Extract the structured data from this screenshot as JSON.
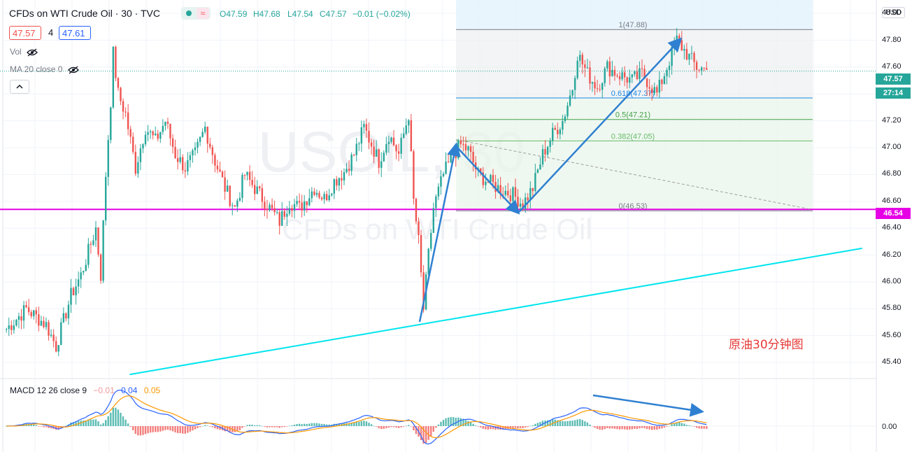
{
  "header": {
    "title": "CFDs on WTI Crude Oil · 30 · TVC",
    "open": "O47.59",
    "high": "H47.68",
    "low": "L47.54",
    "close": "C47.57",
    "change": "−0.01 (−0.02%)",
    "bid": "47.57",
    "spread": "4",
    "ask": "47.61",
    "currency": "USD"
  },
  "indicators": {
    "vol_label": "Vol",
    "ma_label": "MA 20 close 0",
    "macd_label": "MACD 12 26 close 9",
    "macd_hist": "−0.01",
    "macd_line": "0.04",
    "macd_signal": "0.05",
    "macd_axis_value": "0.00"
  },
  "watermark": {
    "symbol": "USOIL, 30",
    "name": "CFDs on WTI Crude Oil"
  },
  "annotation": {
    "caption": "原油30分钟图"
  },
  "price_axis": {
    "current_price": "47.57",
    "countdown": "27:14",
    "level_line_price": "46.54"
  },
  "colors": {
    "up": "#26a69a",
    "down": "#ef5350",
    "trendline": "#00e5ee",
    "level_line": "#e600e6",
    "arrows": "#2f80d1",
    "macd_line": "#2962ff",
    "signal_line": "#ff9800",
    "fib_box": "#e3f2fd"
  },
  "chart_data": {
    "type": "candlestick",
    "timeframe": "30",
    "ylim": [
      45.28,
      48.1
    ],
    "y_ticks": [
      "48.00",
      "47.80",
      "47.60",
      "47.40",
      "47.20",
      "47.00",
      "46.80",
      "46.60",
      "46.40",
      "46.20",
      "46.00",
      "45.80",
      "45.60",
      "45.40"
    ],
    "horizontal_level": 46.54,
    "trendline": [
      {
        "bar": 50,
        "price": 45.31
      },
      {
        "bar": 345,
        "price": 46.25
      }
    ],
    "fibonacci": {
      "from": 46.53,
      "to": 47.88,
      "levels": [
        {
          "label": "1(47.88)",
          "price": 47.88
        },
        {
          "label": "0.618(47.37)",
          "price": 47.37
        },
        {
          "label": "0.5(47.21)",
          "price": 47.21
        },
        {
          "label": "0.382(47.05)",
          "price": 47.05
        },
        {
          "label": "0(46.53)",
          "price": 46.53
        }
      ]
    },
    "arrows": [
      {
        "from": [
          168,
          45.72
        ],
        "to": [
          183,
          47.06
        ]
      },
      {
        "from": [
          185,
          47.01
        ],
        "to": [
          208,
          46.55
        ]
      },
      {
        "from": [
          208,
          46.55
        ],
        "to": [
          272,
          47.86
        ]
      },
      {
        "from": [
          235,
          47.2
        ],
        "to": [
          235,
          47.21
        ]
      }
    ],
    "close_path": [
      [
        0,
        45.65
      ],
      [
        8,
        45.8
      ],
      [
        16,
        45.68
      ],
      [
        20,
        45.52
      ],
      [
        26,
        45.9
      ],
      [
        30,
        46.05
      ],
      [
        36,
        46.4
      ],
      [
        38,
        46.05
      ],
      [
        40,
        46.8
      ],
      [
        42,
        47.35
      ],
      [
        43,
        47.7
      ],
      [
        45,
        47.4
      ],
      [
        48,
        47.25
      ],
      [
        52,
        46.85
      ],
      [
        56,
        47.15
      ],
      [
        60,
        47.05
      ],
      [
        64,
        47.2
      ],
      [
        68,
        46.95
      ],
      [
        72,
        46.85
      ],
      [
        76,
        46.95
      ],
      [
        80,
        47.15
      ],
      [
        84,
        46.9
      ],
      [
        88,
        46.7
      ],
      [
        92,
        46.55
      ],
      [
        96,
        46.8
      ],
      [
        98,
        46.75
      ],
      [
        102,
        46.65
      ],
      [
        106,
        46.55
      ],
      [
        110,
        46.45
      ],
      [
        114,
        46.6
      ],
      [
        118,
        46.55
      ],
      [
        124,
        46.7
      ],
      [
        128,
        46.62
      ],
      [
        132,
        46.75
      ],
      [
        136,
        46.82
      ],
      [
        140,
        46.95
      ],
      [
        144,
        47.15
      ],
      [
        150,
        46.9
      ],
      [
        154,
        47.1
      ],
      [
        158,
        46.95
      ],
      [
        162,
        47.25
      ],
      [
        164,
        46.6
      ],
      [
        166,
        46.3
      ],
      [
        168,
        45.8
      ],
      [
        170,
        46.2
      ],
      [
        172,
        46.55
      ],
      [
        176,
        46.8
      ],
      [
        180,
        46.95
      ],
      [
        183,
        47.02
      ],
      [
        186,
        46.98
      ],
      [
        190,
        46.8
      ],
      [
        194,
        46.75
      ],
      [
        198,
        46.7
      ],
      [
        204,
        46.65
      ],
      [
        208,
        46.58
      ],
      [
        212,
        46.7
      ],
      [
        216,
        46.95
      ],
      [
        220,
        47.1
      ],
      [
        224,
        47.2
      ],
      [
        228,
        47.45
      ],
      [
        230,
        47.7
      ],
      [
        234,
        47.55
      ],
      [
        238,
        47.45
      ],
      [
        242,
        47.6
      ],
      [
        246,
        47.55
      ],
      [
        252,
        47.5
      ],
      [
        256,
        47.55
      ],
      [
        262,
        47.4
      ],
      [
        266,
        47.6
      ],
      [
        270,
        47.8
      ],
      [
        274,
        47.7
      ],
      [
        278,
        47.6
      ],
      [
        282,
        47.58
      ]
    ]
  }
}
